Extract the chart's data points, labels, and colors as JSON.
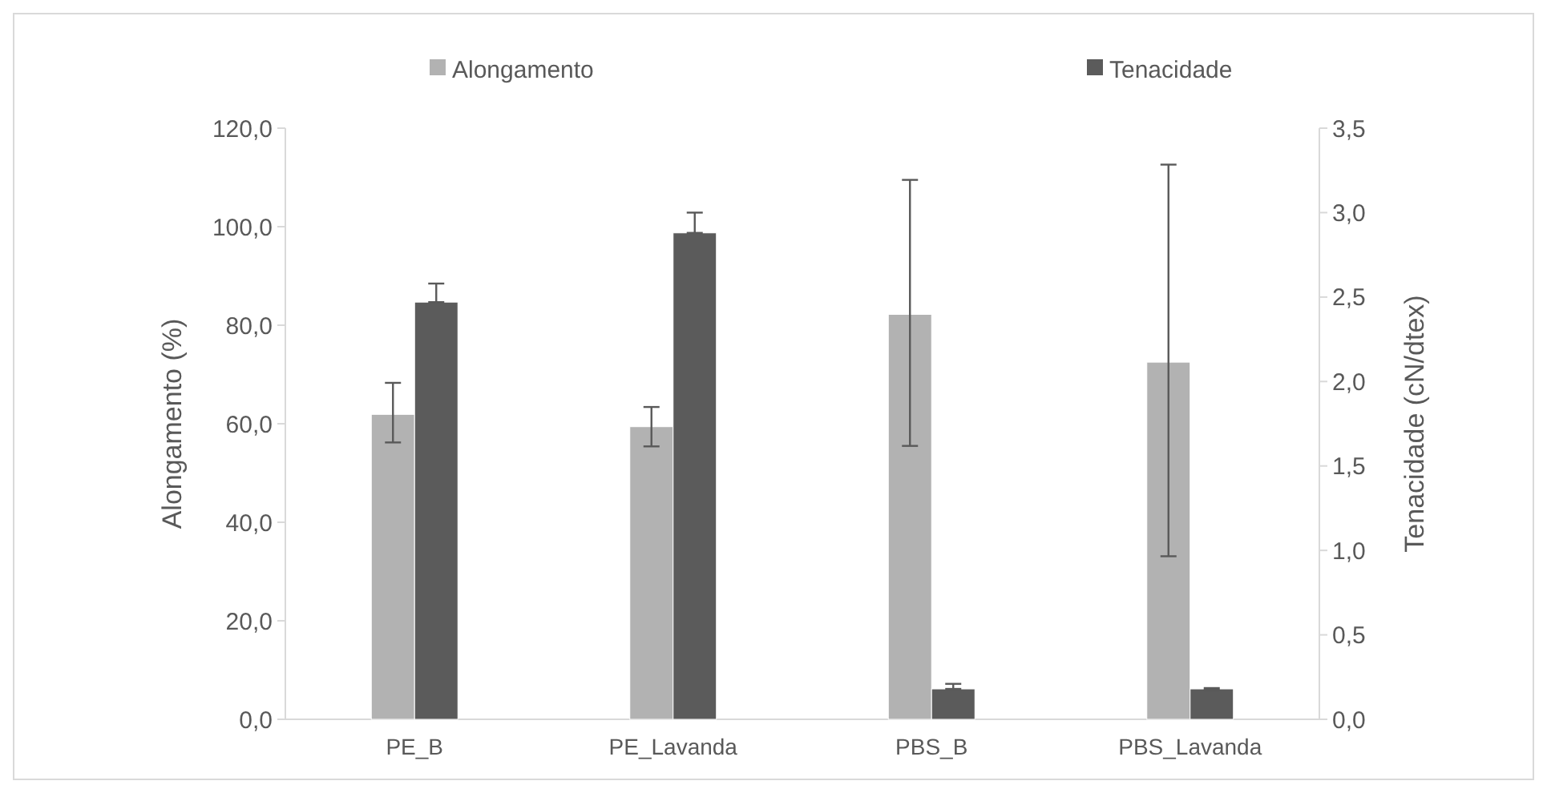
{
  "chart_data": {
    "type": "bar",
    "categories": [
      "PE_B",
      "PE_Lavanda",
      "PBS_B",
      "PBS_Lavanda"
    ],
    "series": [
      {
        "name": "Alongamento",
        "color": "#b2b2b2",
        "values": [
          61.9,
          59.4,
          82.2,
          72.5
        ],
        "errors": [
          [
            56.2,
            68.3
          ],
          [
            55.4,
            63.4
          ],
          [
            55.5,
            109.5
          ],
          [
            33.1,
            112.6
          ]
        ]
      },
      {
        "name": "Tenacidade",
        "color": "#5b5b5b",
        "axis": "y2",
        "values": [
          2.47,
          2.88,
          0.18,
          0.18
        ],
        "errors": [
          [
            2.47,
            2.58
          ],
          [
            2.88,
            3.0
          ],
          [
            0.18,
            0.21
          ],
          [
            0.175,
            0.185
          ]
        ]
      }
    ],
    "ylabel": "Alongamento (%)",
    "y2label": "Tenacidade (cN/dtex)",
    "ylim": [
      0,
      120
    ],
    "yticks": [
      {
        "value": 0,
        "label": "0,0"
      },
      {
        "value": 20,
        "label": "20,0"
      },
      {
        "value": 40,
        "label": "40,0"
      },
      {
        "value": 60,
        "label": "60,0"
      },
      {
        "value": 80,
        "label": "80,0"
      },
      {
        "value": 100,
        "label": "100,0"
      },
      {
        "value": 120,
        "label": "120,0"
      }
    ],
    "y2lim": [
      0,
      3.5
    ],
    "y2ticks": [
      {
        "value": 0,
        "label": "0,0"
      },
      {
        "value": 0.5,
        "label": "0,5"
      },
      {
        "value": 1,
        "label": "1,0"
      },
      {
        "value": 1.5,
        "label": "1,5"
      },
      {
        "value": 2,
        "label": "2,0"
      },
      {
        "value": 2.5,
        "label": "2,5"
      },
      {
        "value": 3,
        "label": "3,0"
      },
      {
        "value": 3.5,
        "label": "3,5"
      }
    ],
    "legend": "top",
    "grid": false
  }
}
